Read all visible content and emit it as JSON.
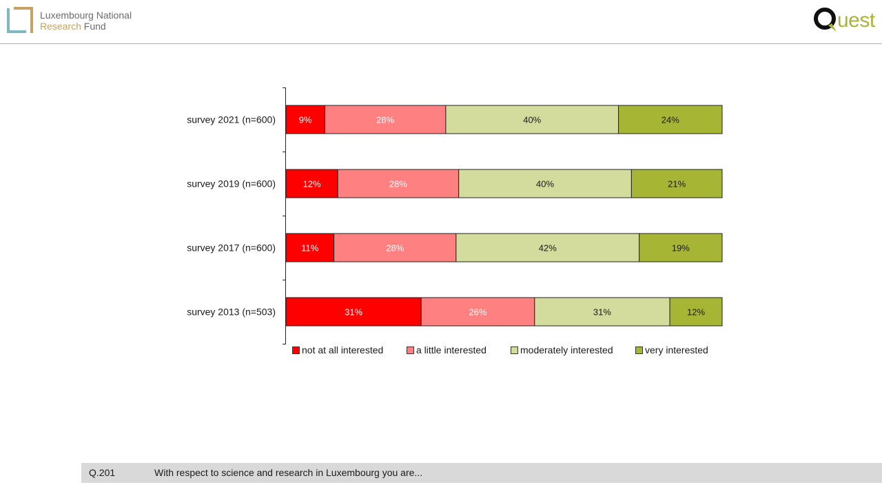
{
  "header": {
    "org_line1": "Luxembourg National",
    "org_line2_accent": "Research",
    "org_line2_rest": " Fund",
    "quest_letters": "uest"
  },
  "chart_data": {
    "type": "bar",
    "orientation": "horizontal",
    "stacked": true,
    "percent_stacked": true,
    "categories": [
      "survey 2021 (n=600)",
      "survey 2019 (n=600)",
      "survey 2017 (n=600)",
      "survey 2013 (n=503)"
    ],
    "series": [
      {
        "name": "not at all interested",
        "color": "#ff0000",
        "label_color": "#ffffff",
        "values": [
          9,
          12,
          11,
          31
        ],
        "labels": [
          "9%",
          "12%",
          "11%",
          "31%"
        ]
      },
      {
        "name": "a little interested",
        "color": "#ff8080",
        "label_color": "#ffffff",
        "values": [
          28,
          28,
          28,
          26
        ],
        "labels": [
          "28%",
          "28%",
          "28%",
          "26%"
        ]
      },
      {
        "name": "moderately interested",
        "color": "#d3dc9c",
        "label_color": "#1a1a1a",
        "values": [
          40,
          40,
          42,
          31
        ],
        "labels": [
          "40%",
          "40%",
          "42%",
          "31%"
        ]
      },
      {
        "name": "very interested",
        "color": "#a6b533",
        "label_color": "#1a1a1a",
        "values": [
          24,
          21,
          19,
          12
        ],
        "labels": [
          "24%",
          "21%",
          "19%",
          "12%"
        ]
      }
    ],
    "legend_position": "bottom",
    "grid": false
  },
  "footer": {
    "code": "Q.201",
    "question": "With respect to science and research in Luxembourg you are..."
  }
}
